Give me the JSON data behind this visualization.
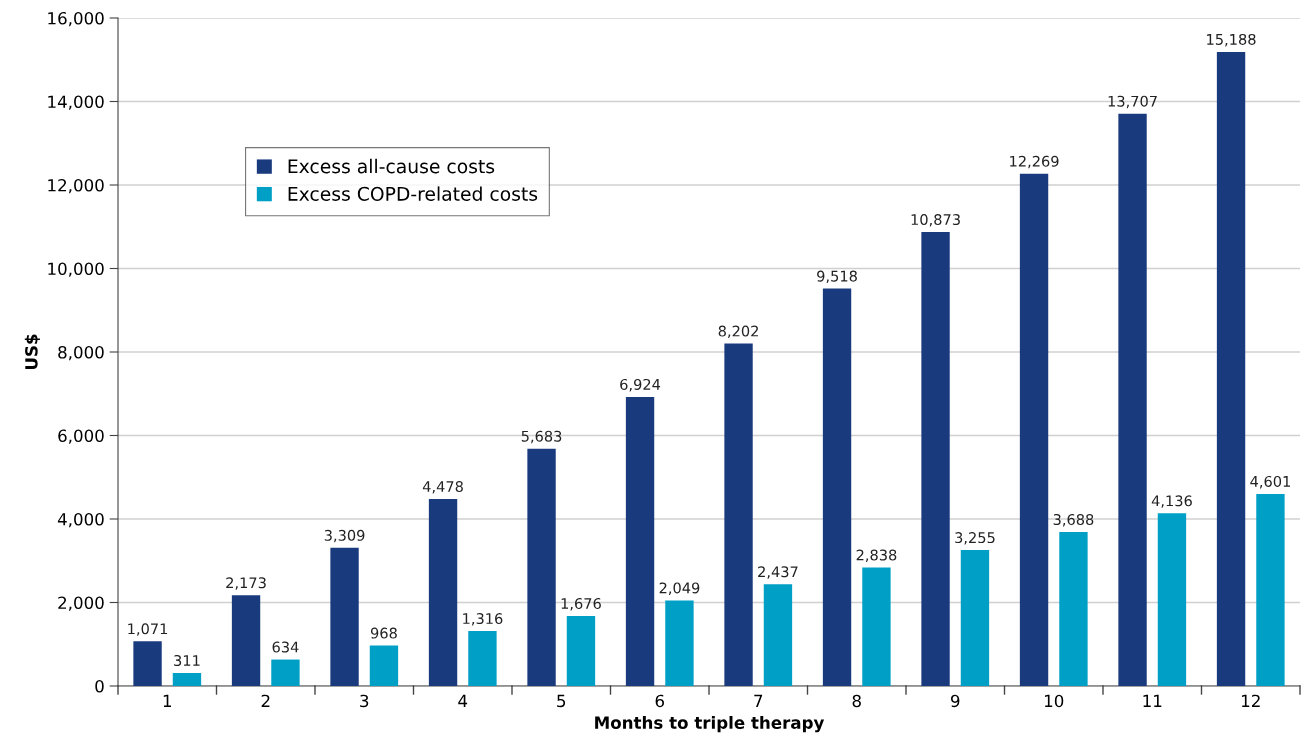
{
  "chart_data": {
    "type": "bar",
    "xlabel": "Months to triple therapy",
    "ylabel": "US$",
    "categories": [
      "1",
      "2",
      "3",
      "4",
      "5",
      "6",
      "7",
      "8",
      "9",
      "10",
      "11",
      "12"
    ],
    "series": [
      {
        "name": "Excess all-cause costs",
        "color": "#1a3a7e",
        "values": [
          1071,
          2173,
          3309,
          4478,
          5683,
          6924,
          8202,
          9518,
          10873,
          12269,
          13707,
          15188
        ],
        "value_labels": [
          "1,071",
          "2,173",
          "3,309",
          "4,478",
          "5,683",
          "6,924",
          "8,202",
          "9,518",
          "10,873",
          "12,269",
          "13,707",
          "15,188"
        ]
      },
      {
        "name": "Excess COPD-related costs",
        "color": "#00a0c6",
        "values": [
          311,
          634,
          968,
          1316,
          1676,
          2049,
          2437,
          2838,
          3255,
          3688,
          4136,
          4601
        ],
        "value_labels": [
          "311",
          "634",
          "968",
          "1,316",
          "1,676",
          "2,049",
          "2,437",
          "2,838",
          "3,255",
          "3,688",
          "4,136",
          "4,601"
        ]
      }
    ],
    "ylim": [
      0,
      16000
    ],
    "yticks": [
      {
        "value": 0,
        "label": "0"
      },
      {
        "value": 2000,
        "label": "2,000"
      },
      {
        "value": 4000,
        "label": "4,000"
      },
      {
        "value": 6000,
        "label": "6,000"
      },
      {
        "value": 8000,
        "label": "8,000"
      },
      {
        "value": 10000,
        "label": "10,000"
      },
      {
        "value": 12000,
        "label": "12,000"
      },
      {
        "value": 14000,
        "label": "14,000"
      },
      {
        "value": 16000,
        "label": "16,000"
      }
    ],
    "grid": "y",
    "legend": "top left"
  }
}
